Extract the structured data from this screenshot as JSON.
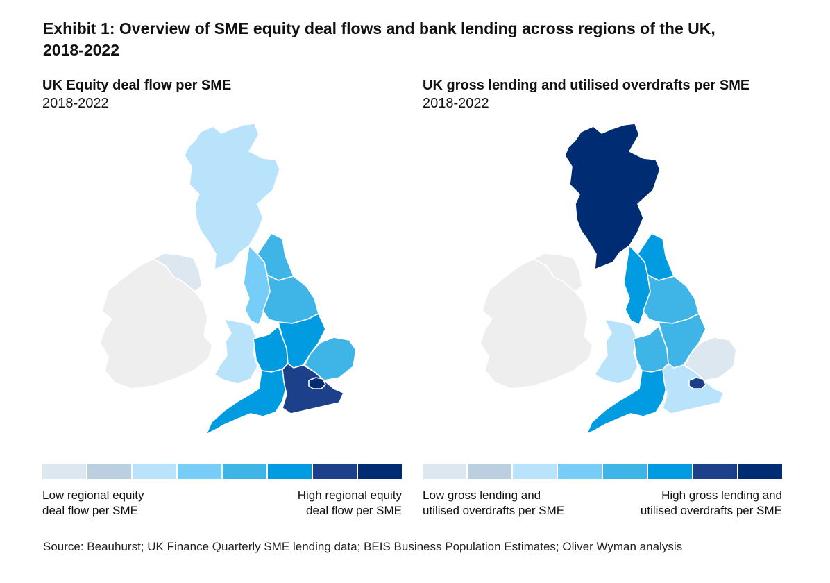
{
  "exhibit": {
    "title": "Exhibit 1: Overview of SME equity deal flows and bank lending across regions of the UK, 2018-2022"
  },
  "palette": [
    "#dde7f0",
    "#bccfe1",
    "#b8e3fb",
    "#76cdf8",
    "#3fb4e6",
    "#009be1",
    "#1c4089",
    "#002c74"
  ],
  "neutral_color": "#eeeeee",
  "panels": [
    {
      "title": "UK Equity deal flow per SME",
      "period": "2018-2022",
      "legend_low": "Low regional equity\ndeal flow per SME",
      "legend_high": "High regional equity\ndeal flow per SME",
      "regions": {
        "ireland": "#eeeeee",
        "northern_ireland": "#dde7f0",
        "scotland": "#b8e3fb",
        "north_east": "#3fb4e6",
        "north_west": "#76cdf8",
        "yorkshire": "#3fb4e6",
        "wales": "#b8e3fb",
        "west_midlands": "#009be1",
        "east_midlands": "#009be1",
        "east_of_england": "#3fb4e6",
        "south_west": "#009be1",
        "south_east": "#1c4089",
        "london": "#002c74"
      }
    },
    {
      "title": "UK gross lending and utilised overdrafts per SME",
      "period": "2018-2022",
      "legend_low": "Low gross lending and\nutilised overdrafts per SME",
      "legend_high": "High gross lending and\nutilised overdrafts per SME",
      "regions": {
        "ireland": "#eeeeee",
        "northern_ireland": "#eeeeee",
        "scotland": "#002c74",
        "north_east": "#009be1",
        "north_west": "#009be1",
        "yorkshire": "#3fb4e6",
        "wales": "#b8e3fb",
        "west_midlands": "#3fb4e6",
        "east_midlands": "#3fb4e6",
        "east_of_england": "#dde7f0",
        "south_west": "#009be1",
        "south_east": "#b8e3fb",
        "london": "#1c4089"
      }
    }
  ],
  "source": "Source: Beauhurst; UK Finance Quarterly SME lending data; BEIS Business Population Estimates; Oliver Wyman analysis"
}
